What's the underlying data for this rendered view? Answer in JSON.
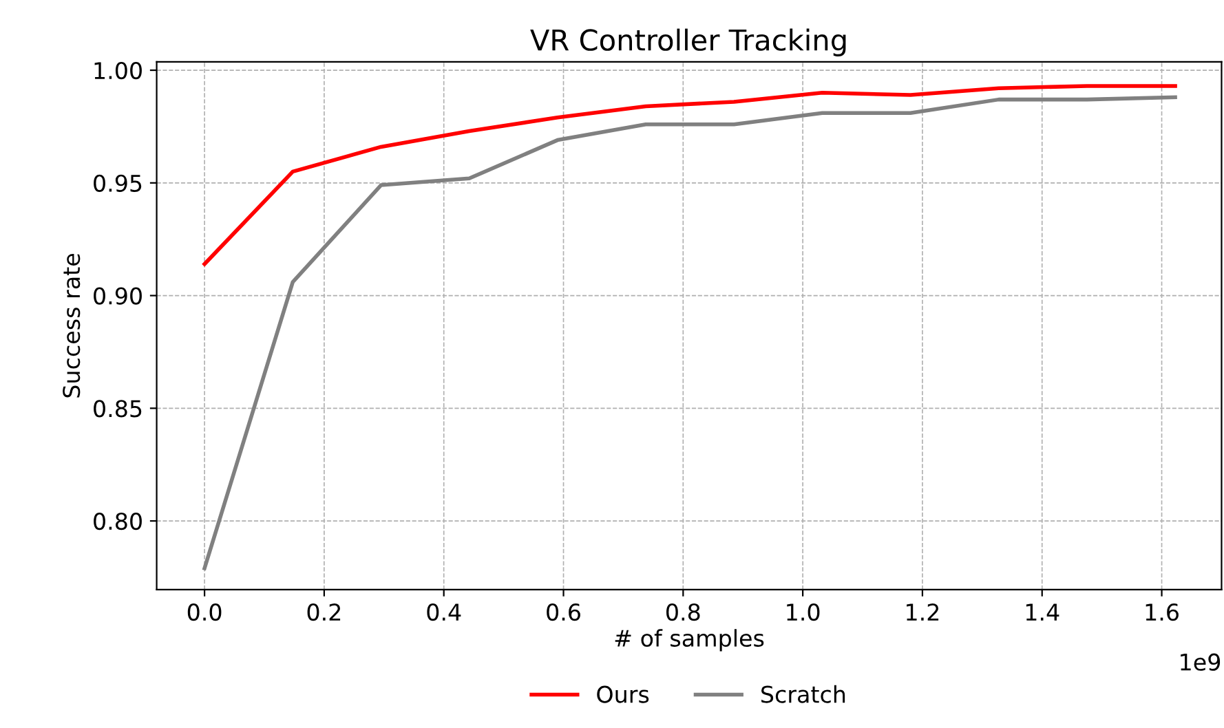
{
  "chart_data": {
    "type": "line",
    "title": "VR Controller Tracking",
    "xlabel": "# of samples",
    "ylabel": "Success rate",
    "x": [
      0,
      0.1475,
      0.295,
      0.4425,
      0.59,
      0.7375,
      0.885,
      1.0325,
      1.18,
      1.3275,
      1.475,
      1.6225
    ],
    "series": [
      {
        "name": "Ours",
        "color": "#ff0000",
        "values": [
          0.914,
          0.955,
          0.966,
          0.973,
          0.979,
          0.984,
          0.986,
          0.99,
          0.989,
          0.992,
          0.993,
          0.993
        ]
      },
      {
        "name": "Scratch",
        "color": "#808080",
        "values": [
          0.779,
          0.906,
          0.949,
          0.952,
          0.969,
          0.976,
          0.976,
          0.981,
          0.981,
          0.987,
          0.987,
          0.988
        ]
      }
    ],
    "xlim": [
      -0.08,
      1.7
    ],
    "xticks": [
      {
        "value": 0,
        "label": "0.0"
      },
      0.2,
      0.4,
      0.6,
      0.8,
      {
        "value": 1,
        "label": "1.0"
      },
      1.2,
      1.4,
      1.6
    ],
    "ylim": [
      0.7695,
      1.0037
    ],
    "yticks": [
      {
        "value": 0.8,
        "label": "0.80"
      },
      {
        "value": 0.85,
        "label": "0.85"
      },
      {
        "value": 0.9,
        "label": "0.90"
      },
      {
        "value": 0.95,
        "label": "0.95"
      },
      {
        "value": 1.0,
        "label": "1.00"
      }
    ],
    "annotations": [
      "1e9"
    ],
    "grid": true,
    "legend": "bottom",
    "line_style": "solid",
    "marker": "none"
  }
}
